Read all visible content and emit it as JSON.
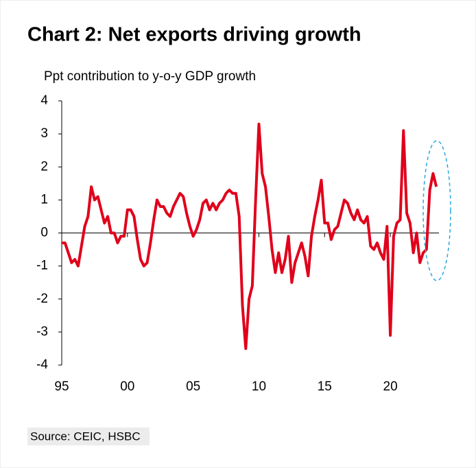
{
  "chart_data": {
    "type": "line",
    "title": "Chart 2: Net exports driving growth",
    "y_label": "Ppt contribution  to y-o-y GDP growth",
    "source": "Source: CEIC, HSBC",
    "x": [
      1995,
      1995.25,
      1995.5,
      1995.75,
      1996,
      1996.25,
      1996.5,
      1996.75,
      1997,
      1997.25,
      1997.5,
      1997.75,
      1998,
      1998.25,
      1998.5,
      1998.75,
      1999,
      1999.25,
      1999.5,
      1999.75,
      2000,
      2000.25,
      2000.5,
      2000.75,
      2001,
      2001.25,
      2001.5,
      2001.75,
      2002,
      2002.25,
      2002.5,
      2002.75,
      2003,
      2003.25,
      2003.5,
      2003.75,
      2004,
      2004.25,
      2004.5,
      2004.75,
      2005,
      2005.25,
      2005.5,
      2005.75,
      2006,
      2006.25,
      2006.5,
      2006.75,
      2007,
      2007.25,
      2007.5,
      2007.75,
      2008,
      2008.25,
      2008.5,
      2008.75,
      2009,
      2009.25,
      2009.5,
      2009.75,
      2010,
      2010.25,
      2010.5,
      2010.75,
      2011,
      2011.25,
      2011.5,
      2011.75,
      2012,
      2012.25,
      2012.5,
      2012.75,
      2013,
      2013.25,
      2013.5,
      2013.75,
      2014,
      2014.25,
      2014.5,
      2014.75,
      2015,
      2015.25,
      2015.5,
      2015.75,
      2016,
      2016.25,
      2016.5,
      2016.75,
      2017,
      2017.25,
      2017.5,
      2017.75,
      2018,
      2018.25,
      2018.5,
      2018.75,
      2019,
      2019.25,
      2019.5,
      2019.75,
      2020,
      2020.25,
      2020.5,
      2020.75,
      2021,
      2021.25,
      2021.5,
      2021.75,
      2022,
      2022.25,
      2022.5,
      2022.75,
      2023,
      2023.25,
      2023.5
    ],
    "series": [
      {
        "color": "#e0001b",
        "values": [
          -0.3,
          -0.3,
          -0.6,
          -0.9,
          -0.8,
          -1.0,
          -0.4,
          0.2,
          0.5,
          1.4,
          1.0,
          1.1,
          0.7,
          0.3,
          0.5,
          0.0,
          0.0,
          -0.3,
          -0.1,
          -0.1,
          0.7,
          0.7,
          0.5,
          -0.2,
          -0.8,
          -1.0,
          -0.9,
          -0.3,
          0.4,
          1.0,
          0.8,
          0.8,
          0.6,
          0.5,
          0.8,
          1.0,
          1.2,
          1.1,
          0.6,
          0.2,
          -0.1,
          0.1,
          0.4,
          0.9,
          1.0,
          0.7,
          0.9,
          0.7,
          0.9,
          1.0,
          1.2,
          1.3,
          1.2,
          1.2,
          0.5,
          -2.2,
          -3.5,
          -2.0,
          -1.6,
          1.0,
          3.3,
          1.8,
          1.4,
          0.5,
          -0.5,
          -1.2,
          -0.6,
          -1.2,
          -0.8,
          -0.1,
          -1.5,
          -0.9,
          -0.6,
          -0.3,
          -0.7,
          -1.3,
          -0.1,
          0.5,
          1.0,
          1.6,
          0.3,
          0.3,
          -0.2,
          0.1,
          0.2,
          0.6,
          1.0,
          0.9,
          0.6,
          0.4,
          0.7,
          0.4,
          0.3,
          0.5,
          -0.4,
          -0.5,
          -0.3,
          -0.6,
          -0.8,
          0.2,
          -3.1,
          -0.1,
          0.3,
          0.4,
          3.1,
          0.6,
          0.3,
          -0.6,
          0.0,
          -0.9,
          -0.6,
          -0.5,
          1.3,
          1.8,
          1.4
        ]
      }
    ],
    "xlim": [
      1995,
      2023.7
    ],
    "xticks": [
      {
        "value": 1995,
        "label": "95"
      },
      {
        "value": 2000,
        "label": "00"
      },
      {
        "value": 2005,
        "label": "05"
      },
      {
        "value": 2010,
        "label": "10"
      },
      {
        "value": 2015,
        "label": "15"
      },
      {
        "value": 2020,
        "label": "20"
      }
    ],
    "ylim": [
      -4,
      4
    ],
    "yticks": [
      -4,
      -3,
      -2,
      -1,
      0,
      1,
      2,
      3,
      4
    ]
  }
}
